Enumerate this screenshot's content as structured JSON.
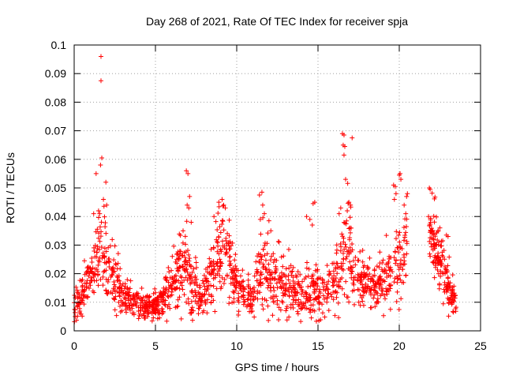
{
  "chart_data": {
    "type": "scatter",
    "title": "Day 268 of 2021, Rate Of TEC Index for receiver spja",
    "xlabel": "GPS time / hours",
    "ylabel": "ROTI / TECUs",
    "xlim": [
      0,
      25
    ],
    "ylim": [
      0,
      0.1
    ],
    "xticks": [
      0,
      5,
      10,
      15,
      20,
      25
    ],
    "xtick_labels": [
      "0",
      "5",
      "10",
      "15",
      "20",
      "25"
    ],
    "yticks": [
      0,
      0.01,
      0.02,
      0.03,
      0.04,
      0.05,
      0.06,
      0.07,
      0.08,
      0.09,
      0.1
    ],
    "ytick_labels": [
      "0",
      "0.01",
      "0.02",
      "0.03",
      "0.04",
      "0.05",
      "0.06",
      "0.07",
      "0.08",
      "0.09",
      "0.1"
    ],
    "grid": true,
    "marker": "plus",
    "color": "#ff0000",
    "profile": [
      [
        0.0,
        0.008,
        0.0025
      ],
      [
        0.4,
        0.011,
        0.003
      ],
      [
        0.8,
        0.016,
        0.004
      ],
      [
        1.2,
        0.022,
        0.005
      ],
      [
        1.6,
        0.028,
        0.008
      ],
      [
        1.9,
        0.025,
        0.007
      ],
      [
        2.3,
        0.018,
        0.005
      ],
      [
        2.8,
        0.014,
        0.004
      ],
      [
        3.3,
        0.011,
        0.003
      ],
      [
        4.0,
        0.009,
        0.0025
      ],
      [
        4.7,
        0.008,
        0.002
      ],
      [
        5.2,
        0.009,
        0.0025
      ],
      [
        5.7,
        0.014,
        0.004
      ],
      [
        6.2,
        0.018,
        0.005
      ],
      [
        6.8,
        0.022,
        0.007
      ],
      [
        7.2,
        0.016,
        0.005
      ],
      [
        7.8,
        0.012,
        0.003
      ],
      [
        8.3,
        0.016,
        0.005
      ],
      [
        8.8,
        0.026,
        0.008
      ],
      [
        9.1,
        0.032,
        0.008
      ],
      [
        9.5,
        0.024,
        0.006
      ],
      [
        10.0,
        0.016,
        0.004
      ],
      [
        10.5,
        0.012,
        0.003
      ],
      [
        11.0,
        0.011,
        0.003
      ],
      [
        11.5,
        0.022,
        0.008
      ],
      [
        12.0,
        0.02,
        0.006
      ],
      [
        12.6,
        0.016,
        0.006
      ],
      [
        13.2,
        0.016,
        0.005
      ],
      [
        13.8,
        0.013,
        0.004
      ],
      [
        14.4,
        0.012,
        0.004
      ],
      [
        14.9,
        0.014,
        0.005
      ],
      [
        15.4,
        0.013,
        0.004
      ],
      [
        16.0,
        0.015,
        0.005
      ],
      [
        16.4,
        0.024,
        0.008
      ],
      [
        16.8,
        0.03,
        0.01
      ],
      [
        17.2,
        0.02,
        0.006
      ],
      [
        17.8,
        0.016,
        0.004
      ],
      [
        18.4,
        0.017,
        0.004
      ],
      [
        19.0,
        0.018,
        0.005
      ],
      [
        19.6,
        0.022,
        0.006
      ],
      [
        20.1,
        0.024,
        0.008
      ],
      [
        20.4,
        0.03,
        0.008
      ]
    ],
    "gaps": [
      [
        20.6,
        21.85
      ]
    ],
    "segment2": [
      [
        21.85,
        0.036,
        0.006
      ],
      [
        22.3,
        0.03,
        0.006
      ],
      [
        22.8,
        0.02,
        0.005
      ],
      [
        23.5,
        0.01,
        0.003
      ]
    ],
    "outliers": [
      [
        1.65,
        0.096
      ],
      [
        1.65,
        0.0875
      ],
      [
        1.7,
        0.0605
      ],
      [
        1.62,
        0.058
      ],
      [
        1.35,
        0.055
      ],
      [
        1.95,
        0.052
      ],
      [
        1.8,
        0.046
      ],
      [
        2.0,
        0.044
      ],
      [
        1.2,
        0.041
      ],
      [
        1.5,
        0.042
      ],
      [
        6.9,
        0.056
      ],
      [
        7.0,
        0.055
      ],
      [
        7.1,
        0.047
      ],
      [
        6.95,
        0.044
      ],
      [
        7.05,
        0.043
      ],
      [
        7.2,
        0.038
      ],
      [
        6.7,
        0.035
      ],
      [
        8.6,
        0.04
      ],
      [
        8.9,
        0.045
      ],
      [
        9.1,
        0.046
      ],
      [
        9.2,
        0.044
      ],
      [
        9.3,
        0.043
      ],
      [
        11.4,
        0.0475
      ],
      [
        11.55,
        0.0485
      ],
      [
        11.6,
        0.044
      ],
      [
        11.7,
        0.041
      ],
      [
        11.45,
        0.039
      ],
      [
        12.1,
        0.035
      ],
      [
        14.3,
        0.04
      ],
      [
        14.5,
        0.039
      ],
      [
        14.7,
        0.0445
      ],
      [
        14.8,
        0.045
      ],
      [
        14.65,
        0.037
      ],
      [
        16.5,
        0.069
      ],
      [
        16.6,
        0.0685
      ],
      [
        16.55,
        0.065
      ],
      [
        16.65,
        0.0645
      ],
      [
        16.6,
        0.0615
      ],
      [
        17.1,
        0.0675
      ],
      [
        16.7,
        0.053
      ],
      [
        16.9,
        0.045
      ],
      [
        17.0,
        0.044
      ],
      [
        16.3,
        0.041
      ],
      [
        16.4,
        0.043
      ],
      [
        16.8,
        0.042
      ],
      [
        19.65,
        0.051
      ],
      [
        19.75,
        0.0505
      ],
      [
        19.8,
        0.048
      ],
      [
        19.7,
        0.046
      ],
      [
        20.05,
        0.055
      ],
      [
        20.1,
        0.053
      ],
      [
        20.0,
        0.0545
      ],
      [
        20.5,
        0.048
      ],
      [
        20.45,
        0.047
      ],
      [
        20.3,
        0.044
      ],
      [
        20.4,
        0.041
      ],
      [
        21.85,
        0.05
      ],
      [
        21.9,
        0.0495
      ],
      [
        21.8,
        0.04
      ],
      [
        22.9,
        0.0335
      ],
      [
        23.0,
        0.033
      ],
      [
        22.4,
        0.035
      ],
      [
        22.5,
        0.036
      ]
    ],
    "n_points": 1700
  }
}
